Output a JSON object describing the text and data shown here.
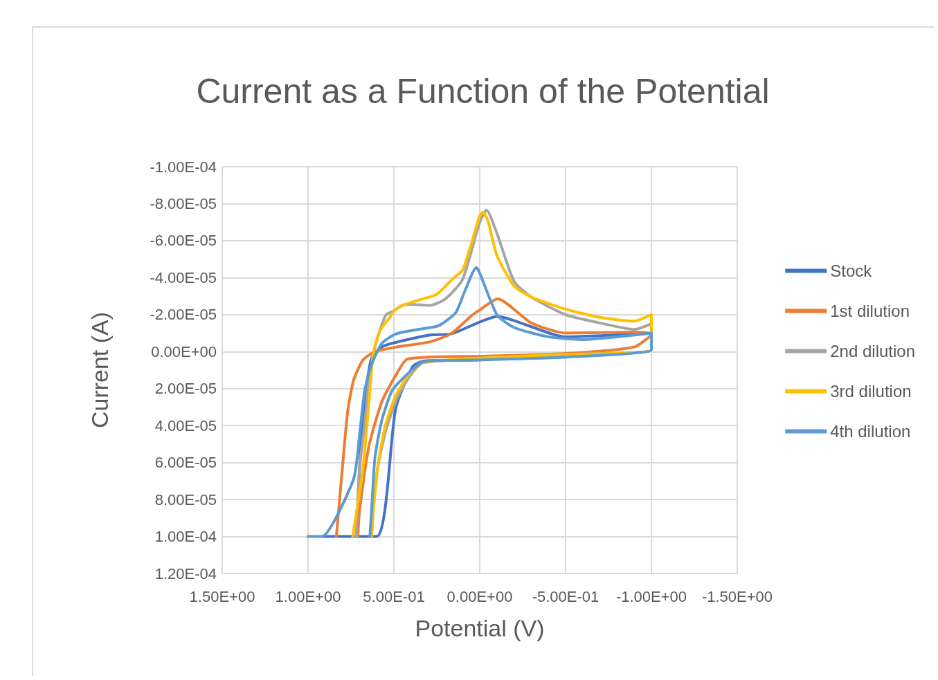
{
  "chart_data": {
    "type": "line",
    "title": "Current as a Function of the Potential",
    "xlabel": "Potential (V)",
    "ylabel": "Current (A)",
    "xlim": [
      1.5,
      -1.5
    ],
    "xticks": [
      {
        "value": 1.5,
        "label": "1.50E+00"
      },
      {
        "value": 1.0,
        "label": "1.00E+00"
      },
      {
        "value": 0.5,
        "label": "5.00E-01"
      },
      {
        "value": 0,
        "label": "0.00E+00"
      },
      {
        "value": -0.5,
        "label": "-5.00E-01"
      },
      {
        "value": -1.0,
        "label": "-1.00E+00"
      },
      {
        "value": -1.5,
        "label": "-1.50E+00"
      }
    ],
    "ylim": [
      0.00012,
      -0.0001
    ],
    "yticks": [
      {
        "value": -0.0001,
        "label": "-1.00E-04"
      },
      {
        "value": -8e-05,
        "label": "-8.00E-05"
      },
      {
        "value": -6e-05,
        "label": "-6.00E-05"
      },
      {
        "value": -4e-05,
        "label": "-4.00E-05"
      },
      {
        "value": -2e-05,
        "label": "-2.00E-05"
      },
      {
        "value": 0,
        "label": "0.00E+00"
      },
      {
        "value": 2e-05,
        "label": "2.00E-05"
      },
      {
        "value": 4e-05,
        "label": "4.00E-05"
      },
      {
        "value": 6e-05,
        "label": "6.00E-05"
      },
      {
        "value": 8e-05,
        "label": "8.00E-05"
      },
      {
        "value": 0.0001,
        "label": "1.00E-04"
      },
      {
        "value": 0.00012,
        "label": "1.20E-04"
      }
    ],
    "grid": true,
    "legend": "right",
    "marker": "none",
    "series": [
      {
        "name": "Stock",
        "color": "#4472c4",
        "x": [
          0.92,
          0.6,
          0.49,
          0.39,
          0.32,
          0,
          -0.5,
          -1.0,
          -1.0,
          -0.5,
          -0.1,
          0,
          0.17,
          0.29,
          0.51,
          0.57,
          0.63,
          0.67,
          0.7,
          0.715
        ],
        "values": [
          0.0001,
          0.0001,
          3.1e-05,
          8e-06,
          5e-06,
          4.5e-06,
          2e-06,
          -1e-06,
          -1e-05,
          -8e-06,
          -1.9e-05,
          -1.6e-05,
          -9.5e-06,
          -9e-06,
          -4.5e-06,
          -2.5e-06,
          3.5e-06,
          2.7e-05,
          6.3e-05,
          0.0001
        ]
      },
      {
        "name": "1st dilution",
        "color": "#ed7d31",
        "x": [
          0.71,
          0.7,
          0.645,
          0.57,
          0.49,
          0.42,
          0,
          -0.5,
          -0.9,
          -1.0,
          -0.9,
          -0.5,
          -0.3,
          -0.105,
          0,
          0.04,
          0.17,
          0.29,
          0.48,
          0.61,
          0.68,
          0.735,
          0.77,
          0.8,
          0.835
        ],
        "values": [
          0.0001,
          8.6e-05,
          5.1e-05,
          2.7e-05,
          1.3e-05,
          4e-06,
          2.5e-06,
          1e-06,
          -2.5e-06,
          -9.5e-06,
          -1.05e-05,
          -1e-05,
          -1.55e-05,
          -2.85e-05,
          -2.25e-05,
          -2e-05,
          -9.5e-06,
          -5.3e-06,
          -2.5e-06,
          0,
          4.5e-06,
          1.55e-05,
          3.3e-05,
          6.3e-05,
          0.0001
        ]
      },
      {
        "name": "2nd dilution",
        "color": "#a5a5a5",
        "x": [
          0.63,
          0.62,
          0.595,
          0.545,
          0.48,
          0.405,
          0.33,
          0,
          -0.5,
          -1.0,
          -1.0,
          -0.9,
          -0.7,
          -0.5,
          -0.3,
          -0.2,
          -0.1,
          -0.04,
          0,
          0.1,
          0.2,
          0.29,
          0.4,
          0.45,
          0.5,
          0.545,
          0.58,
          0.61,
          0.645,
          0.67,
          0.7,
          0.72
        ],
        "values": [
          0.0001,
          8.6e-05,
          6.3e-05,
          4.2e-05,
          2.5e-05,
          1.3e-05,
          6e-06,
          4e-06,
          1.5e-06,
          -1e-06,
          -1.5e-05,
          -1.2e-05,
          -1.55e-05,
          -2e-05,
          -2.95e-05,
          -3.8e-05,
          -6.4e-05,
          -7.65e-05,
          -7e-05,
          -3.9e-05,
          -2.85e-05,
          -2.5e-05,
          -2.55e-05,
          -2.5e-05,
          -2.2e-05,
          -2e-05,
          -1.2e-05,
          -2.5e-06,
          1.55e-05,
          3.9e-05,
          6.3e-05,
          0.0001
        ]
      },
      {
        "name": "3rd dilution",
        "color": "#ffc000",
        "x": [
          0.63,
          0.62,
          0.59,
          0.55,
          0.49,
          0.41,
          0.33,
          0,
          -0.5,
          -1.0,
          -1.0,
          -0.9,
          -0.7,
          -0.5,
          -0.3,
          -0.2,
          -0.1,
          -0.05,
          -0.02,
          0,
          0.05,
          0.1,
          0.15,
          0.25,
          0.35,
          0.45,
          0.5,
          0.52,
          0.58,
          0.62,
          0.645,
          0.68,
          0.74
        ],
        "values": [
          0.0001,
          8.6e-05,
          6e-05,
          4e-05,
          2.4e-05,
          1.2e-05,
          6e-06,
          3.5e-06,
          1.5e-06,
          -1e-06,
          -2e-05,
          -1.65e-05,
          -1.85e-05,
          -2.3e-05,
          -2.95e-05,
          -3.55e-05,
          -5.2e-05,
          -7e-05,
          -7.55e-05,
          -7.35e-05,
          -5.8e-05,
          -4.4e-05,
          -4e-05,
          -3.1e-05,
          -2.8e-05,
          -2.5e-05,
          -2.2e-05,
          -1.9e-05,
          -1.15e-05,
          1e-06,
          2.7e-05,
          6.3e-05,
          0.0001
        ]
      },
      {
        "name": "4th dilution",
        "color": "#5b9bd5",
        "x": [
          1.0,
          0.92,
          0.735,
          0.7,
          0.67,
          0.63,
          0.57,
          0.49,
          0.36,
          0.24,
          0.14,
          0.09,
          0.02,
          0,
          -0.1,
          -0.2,
          -0.4,
          -0.6,
          -0.8,
          -1.0,
          -1.0,
          -0.5,
          0,
          0.3,
          0.34,
          0.42,
          0.51,
          0.57,
          0.61,
          0.63,
          0.64
        ],
        "values": [
          0.0001,
          0.0001,
          6.9e-05,
          4.5e-05,
          2.1e-05,
          7e-06,
          -4.5e-06,
          -9.5e-06,
          -1.2e-05,
          -1.4e-05,
          -2.1e-05,
          -3.2e-05,
          -4.55e-05,
          -4.25e-05,
          -2e-05,
          -1.3e-05,
          -8e-06,
          -6.5e-06,
          -8e-06,
          -1e-05,
          -1e-06,
          3e-06,
          4.5e-06,
          5e-06,
          6e-06,
          1.2e-05,
          2.1e-05,
          3.7e-05,
          5.7e-05,
          8.6e-05,
          0.0001
        ]
      }
    ]
  }
}
